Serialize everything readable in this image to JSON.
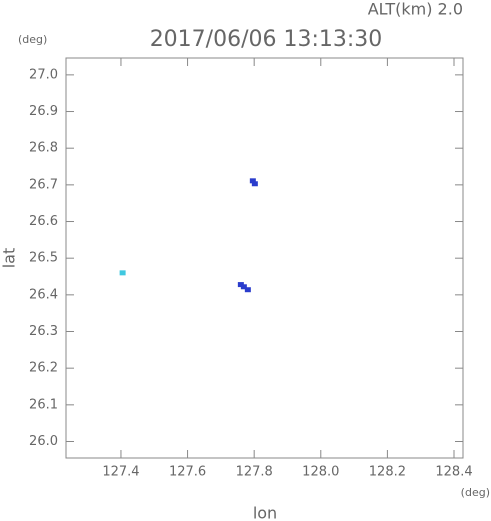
{
  "chart_data": {
    "type": "scatter",
    "title": "2017/06/06 13:13:30",
    "annotation": "ALT(km) 2.0",
    "y_unit": "(deg)",
    "x_unit": "(deg)",
    "xlabel": "lon",
    "ylabel": "lat",
    "x": [
      127.405,
      127.796,
      127.802,
      127.76,
      127.769,
      127.781
    ],
    "y": [
      26.46,
      26.711,
      26.703,
      26.428,
      26.422,
      26.414
    ],
    "colors": [
      "#40c8e0",
      "#2a3ccc",
      "#2a3ccc",
      "#2a3ccc",
      "#2a3ccc",
      "#2a3ccc"
    ],
    "xlim": [
      127.235,
      128.427
    ],
    "ylim": [
      25.955,
      27.046
    ],
    "xticks": [
      127.4,
      127.6,
      127.8,
      {
        "value": 128,
        "label": "128.0"
      },
      128.2,
      128.4
    ],
    "yticks": [
      {
        "value": 26,
        "label": "26.0"
      },
      26.1,
      26.2,
      26.3,
      26.4,
      26.5,
      26.6,
      26.7,
      26.8,
      26.9,
      {
        "value": 27,
        "label": "27.0"
      }
    ]
  }
}
